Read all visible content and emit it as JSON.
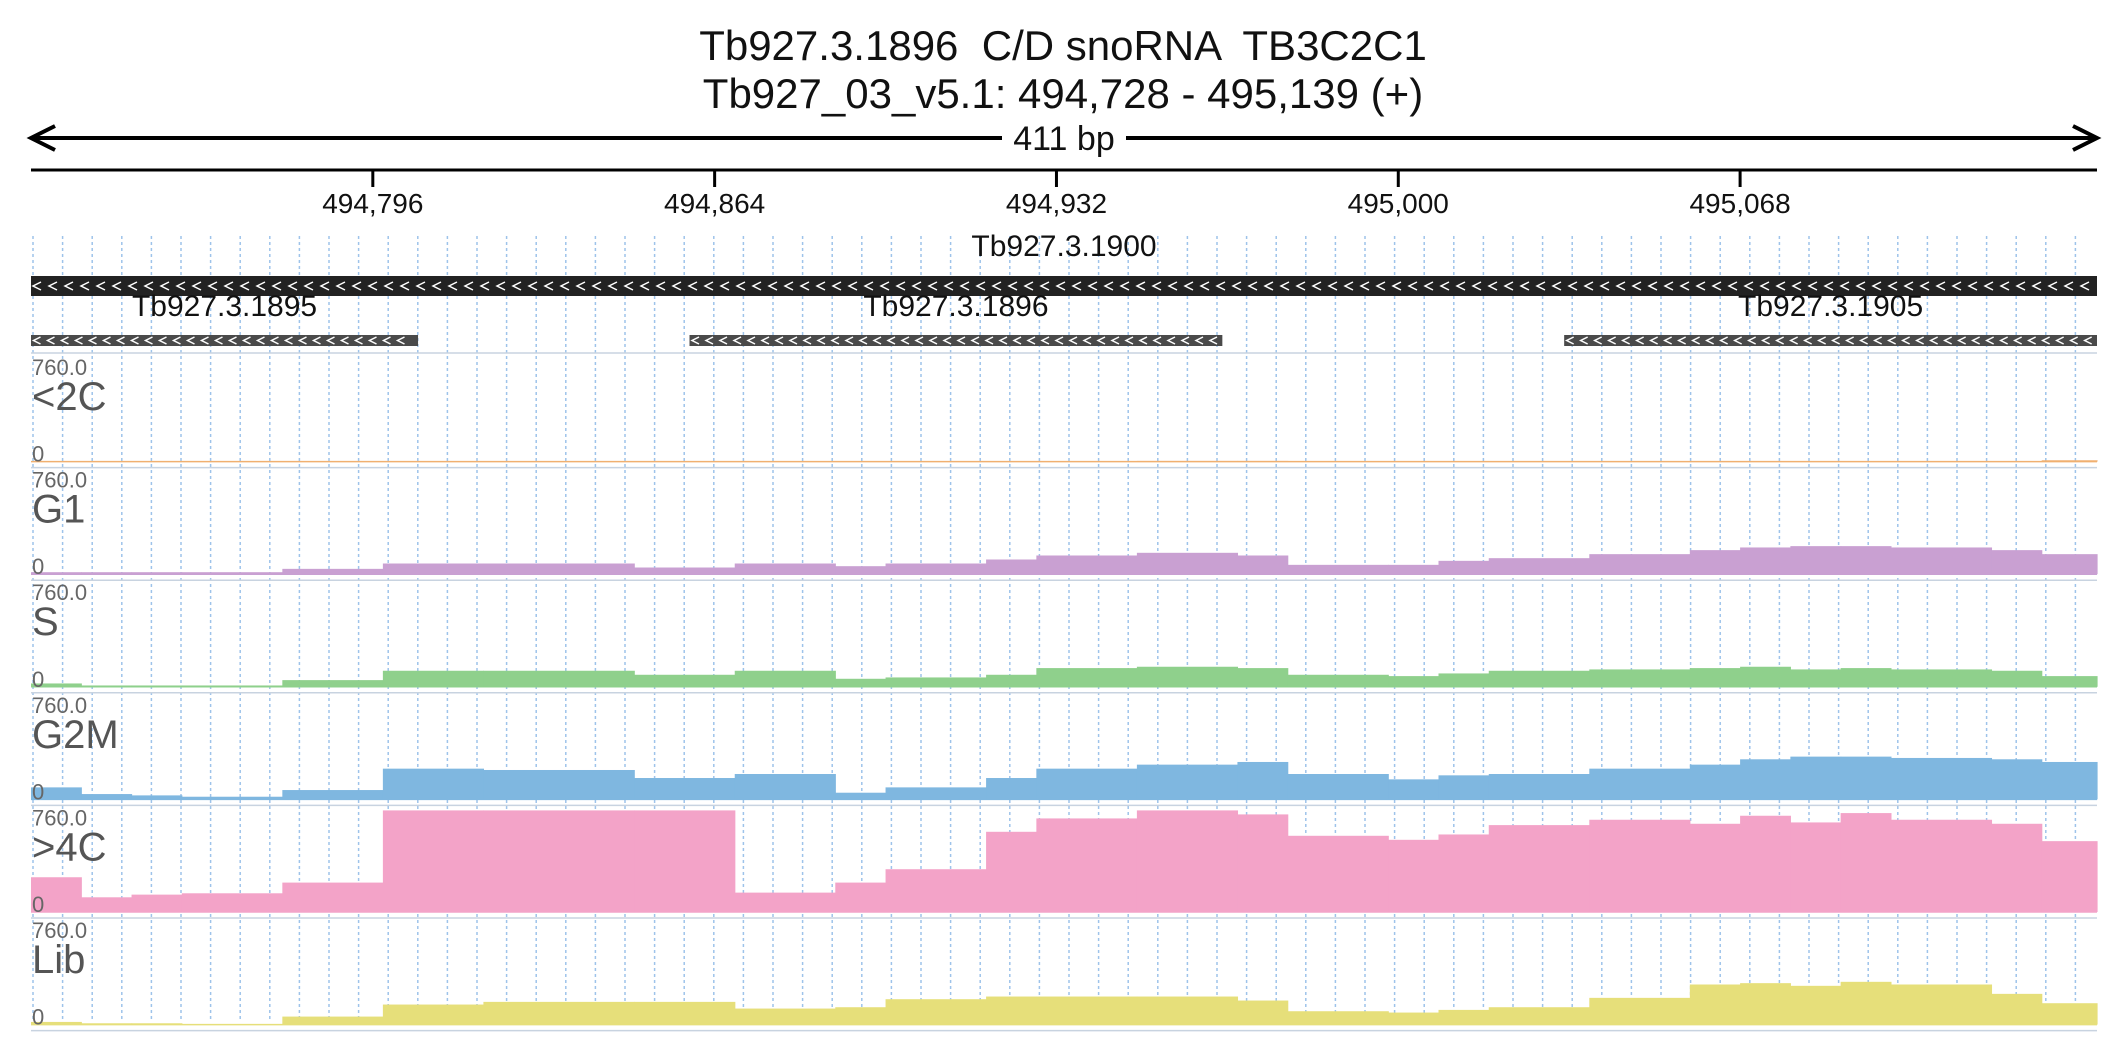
{
  "header": {
    "title_line_1": "Tb927.3.1896  C/D snoRNA  TB3C2C1",
    "title_line_2": "Tb927_03_v5.1: 494,728 - 495,139 (+)"
  },
  "chart_data": {
    "type": "area",
    "region": {
      "chromosome": "Tb927_03_v5.1",
      "start": 494728,
      "end": 495139,
      "strand": "+",
      "span_label": "411 bp"
    },
    "ticks": [
      {
        "pos": 494796,
        "label": "494,796"
      },
      {
        "pos": 494864,
        "label": "494,864"
      },
      {
        "pos": 494932,
        "label": "494,932"
      },
      {
        "pos": 495000,
        "label": "495,000"
      },
      {
        "pos": 495068,
        "label": "495,068"
      }
    ],
    "genes": [
      {
        "name": "Tb927.3.1900",
        "start": 494728,
        "end": 495139,
        "strand": "-",
        "row": 0,
        "fill": "#222222"
      },
      {
        "name": "Tb927.3.1895",
        "start": 494728,
        "end": 494805,
        "strand": "-",
        "row": 1,
        "fill": "#4a4a4a"
      },
      {
        "name": "Tb927.3.1896",
        "start": 494859,
        "end": 494965,
        "strand": "-",
        "row": 1,
        "fill": "#4a4a4a"
      },
      {
        "name": "Tb927.3.1905",
        "start": 495033,
        "end": 495139,
        "strand": "-",
        "row": 1,
        "fill": "#4a4a4a"
      }
    ],
    "x_breaks": [
      494728,
      494738,
      494748,
      494758,
      494778,
      494798,
      494818,
      494848,
      494868,
      494888,
      494898,
      494918,
      494928,
      494948,
      494968,
      494978,
      494998,
      495008,
      495018,
      495038,
      495058,
      495068,
      495078,
      495088,
      495098,
      495118,
      495128,
      495139
    ],
    "y_range": [
      0,
      760.0
    ],
    "y_max_label": "760.0",
    "y_min_label": "0",
    "tracks": [
      {
        "name": "<2C",
        "color": "#f0b070",
        "values": [
          0,
          0,
          0,
          0,
          0,
          0,
          0,
          0,
          0,
          0,
          0,
          0,
          0,
          5,
          5,
          0,
          0,
          0,
          0,
          0,
          0,
          0,
          0,
          0,
          0,
          0,
          10
        ]
      },
      {
        "name": "G1",
        "color": "#c9a0d2",
        "values": [
          15,
          15,
          15,
          15,
          40,
          80,
          80,
          50,
          80,
          60,
          80,
          110,
          140,
          160,
          140,
          70,
          70,
          100,
          120,
          150,
          180,
          200,
          210,
          210,
          200,
          180,
          150
        ]
      },
      {
        "name": "S",
        "color": "#8fd08c",
        "values": [
          25,
          10,
          10,
          10,
          50,
          120,
          120,
          90,
          120,
          60,
          70,
          90,
          140,
          150,
          140,
          90,
          80,
          100,
          120,
          130,
          140,
          150,
          130,
          140,
          130,
          120,
          80
        ]
      },
      {
        "name": "G2M",
        "color": "#7fb7e0",
        "values": [
          90,
          40,
          30,
          20,
          70,
          230,
          220,
          160,
          190,
          50,
          90,
          160,
          230,
          260,
          280,
          190,
          150,
          180,
          190,
          230,
          260,
          300,
          320,
          320,
          310,
          300,
          280
        ]
      },
      {
        "name": ">4C",
        "color": "#f3a3c8",
        "values": [
          260,
          110,
          130,
          140,
          220,
          760,
          760,
          760,
          145,
          220,
          320,
          600,
          700,
          760,
          730,
          570,
          540,
          580,
          650,
          690,
          660,
          720,
          670,
          740,
          690,
          660,
          530
        ]
      },
      {
        "name": "Lib",
        "color": "#e6df7a",
        "values": [
          20,
          10,
          10,
          0,
          60,
          150,
          170,
          170,
          120,
          130,
          190,
          210,
          210,
          210,
          180,
          100,
          90,
          110,
          130,
          200,
          300,
          310,
          290,
          320,
          300,
          230,
          160
        ]
      }
    ]
  }
}
